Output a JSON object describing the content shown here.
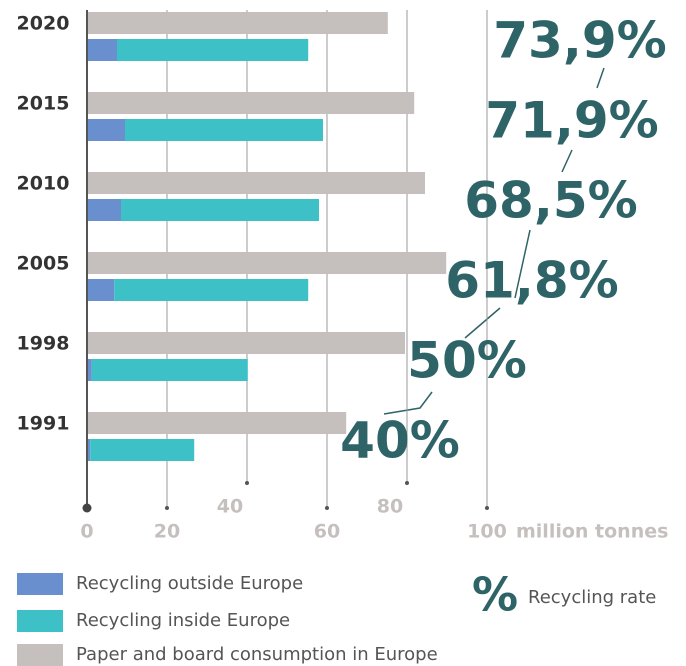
{
  "chart_data": {
    "type": "bar",
    "orientation": "horizontal",
    "categories": [
      "2020",
      "2015",
      "2010",
      "2005",
      "1998",
      "1991"
    ],
    "series": [
      {
        "name": "Recycling outside Europe",
        "color": "#6a8fcf",
        "values": [
          7.5,
          9.5,
          8.5,
          6.8,
          1.2,
          0.8
        ]
      },
      {
        "name": "Recycling inside Europe",
        "color": "#3ec1c6",
        "values": [
          47.8,
          49.5,
          49.5,
          48.5,
          39,
          26
        ]
      },
      {
        "name": "Paper and board consumption in Europe",
        "color": "#c5bfbd",
        "values": [
          75.2,
          81.8,
          84.5,
          89.8,
          79.5,
          64.8
        ]
      }
    ],
    "recycling_rate": {
      "name": "Recycling rate",
      "symbol": "%",
      "color": "#2e6467",
      "values": [
        73.9,
        71.9,
        68.5,
        61.8,
        50,
        40
      ],
      "value_labels": [
        "73,9%",
        "71,9%",
        "68,5%",
        "61,8%",
        "50%",
        "40%"
      ]
    },
    "xlabel": "million tonnes",
    "xlim": [
      0,
      100
    ],
    "xticks": [
      0,
      20,
      40,
      60,
      80,
      100
    ],
    "grid": true
  }
}
